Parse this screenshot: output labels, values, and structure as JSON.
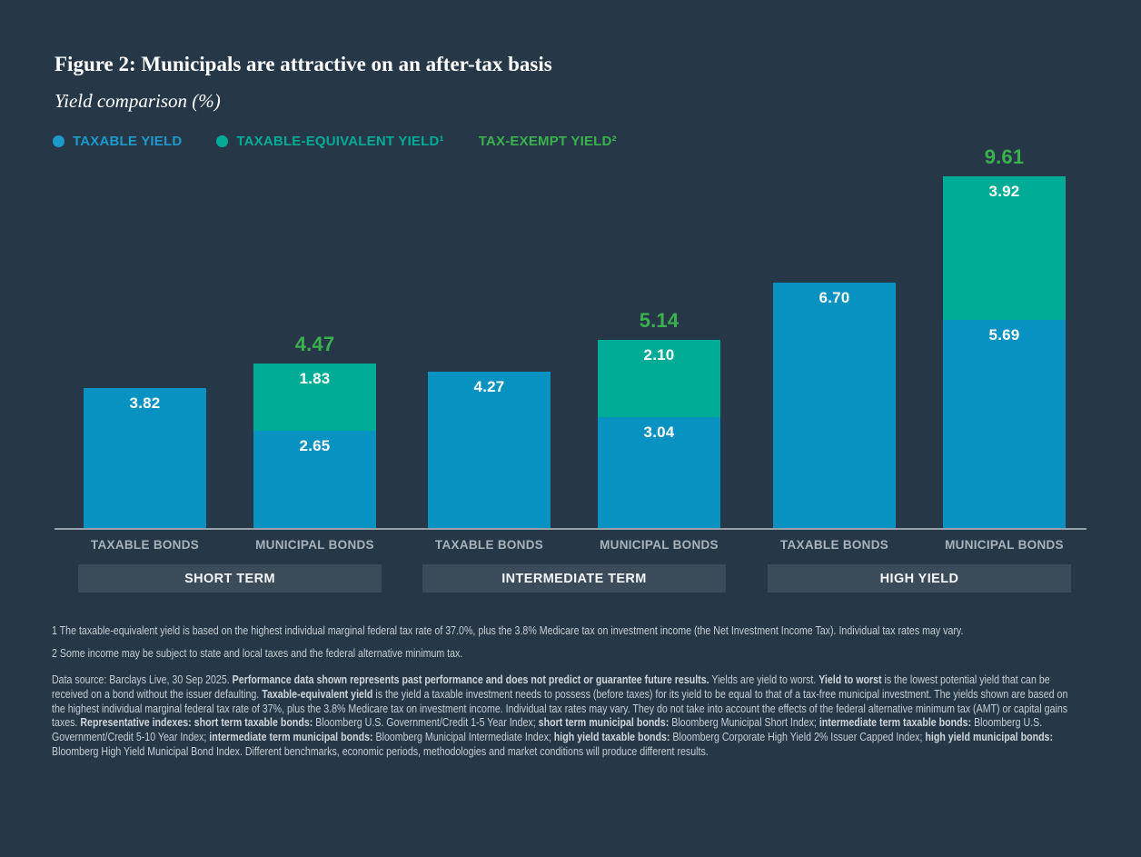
{
  "figure": {
    "title": "Figure 2: Municipals are attractive on an after-tax basis",
    "subtitle": "Yield comparison (%)"
  },
  "legend": [
    {
      "label": "TAXABLE YIELD",
      "color": "#1D99CC",
      "dot": true
    },
    {
      "label": "TAXABLE-EQUIVALENT YIELD¹",
      "color": "#00AC96",
      "dot": true
    },
    {
      "label": "TAX-EXEMPT YIELD²",
      "color": "#3AB04E",
      "dot": false
    }
  ],
  "chart_data": {
    "type": "bar",
    "stacked": true,
    "title": "Yield comparison (%)",
    "ylabel": "Yield (%)",
    "ylim": [
      0,
      10.4
    ],
    "grid": false,
    "legend_position": "top",
    "series_colors": {
      "TAXABLE YIELD": "#0892C2",
      "TAXABLE-EQUIVALENT YIELD": "#00AC96",
      "TAX-EXEMPT YIELD": "#3AB04E"
    },
    "total_label_color": "#3AB04E",
    "groups": [
      {
        "label": "SHORT TERM",
        "bars": [
          {
            "category": "TAXABLE BONDS",
            "segments": [
              {
                "series": "TAXABLE YIELD",
                "value": 3.82,
                "label": "3.82"
              }
            ],
            "total": null,
            "total_label": null
          },
          {
            "category": "MUNICIPAL BONDS",
            "segments": [
              {
                "series": "TAXABLE YIELD",
                "value": 2.65,
                "label": "2.65"
              },
              {
                "series": "TAXABLE-EQUIVALENT YIELD",
                "value": 1.83,
                "label": "1.83"
              }
            ],
            "total": 4.47,
            "total_label": "4.47"
          }
        ]
      },
      {
        "label": "INTERMEDIATE TERM",
        "bars": [
          {
            "category": "TAXABLE BONDS",
            "segments": [
              {
                "series": "TAXABLE YIELD",
                "value": 4.27,
                "label": "4.27"
              }
            ],
            "total": null,
            "total_label": null
          },
          {
            "category": "MUNICIPAL BONDS",
            "segments": [
              {
                "series": "TAXABLE YIELD",
                "value": 3.04,
                "label": "3.04"
              },
              {
                "series": "TAXABLE-EQUIVALENT YIELD",
                "value": 2.1,
                "label": "2.10"
              }
            ],
            "total": 5.14,
            "total_label": "5.14"
          }
        ]
      },
      {
        "label": "HIGH YIELD",
        "bars": [
          {
            "category": "TAXABLE BONDS",
            "segments": [
              {
                "series": "TAXABLE YIELD",
                "value": 6.7,
                "label": "6.70"
              }
            ],
            "total": null,
            "total_label": null
          },
          {
            "category": "MUNICIPAL BONDS",
            "segments": [
              {
                "series": "TAXABLE YIELD",
                "value": 5.69,
                "label": "5.69"
              },
              {
                "series": "TAXABLE-EQUIVALENT YIELD",
                "value": 3.92,
                "label": "3.92"
              }
            ],
            "total": 9.61,
            "total_label": "9.61"
          }
        ]
      }
    ]
  },
  "footnotes": [
    "1 The taxable-equivalent yield is based on the highest individual marginal federal tax rate of 37.0%, plus the 3.8% Medicare tax on investment income (the Net Investment Income Tax). Individual tax rates may vary.",
    "2 Some income may be subject to state and local taxes and the federal alternative minimum tax."
  ],
  "disclosure": {
    "segments": [
      {
        "text": "Data source: Barclays Live, 30 Sep 2025. ",
        "bold": false
      },
      {
        "text": "Performance data shown represents past performance and does not predict or guarantee future results.",
        "bold": true
      },
      {
        "text": " Yields are yield to worst. ",
        "bold": false
      },
      {
        "text": "Yield to worst",
        "bold": true
      },
      {
        "text": " is the lowest potential yield that can be received on a bond without the issuer defaulting. ",
        "bold": false
      },
      {
        "text": "Taxable-equivalent yield",
        "bold": true
      },
      {
        "text": " is the yield a taxable investment needs to possess (before taxes) for its yield to be equal to that of a tax-free municipal investment. The yields shown are based on the highest individual marginal federal tax rate of 37%, plus the 3.8% Medicare tax on investment income. Individual tax rates may vary. They do not take into account the effects of the federal alternative minimum tax (AMT) or capital gains taxes. ",
        "bold": false
      },
      {
        "text": "Representative indexes: short term taxable bonds:",
        "bold": true
      },
      {
        "text": " Bloomberg U.S. Government/Credit 1-5 Year Index; ",
        "bold": false
      },
      {
        "text": "short term municipal bonds:",
        "bold": true
      },
      {
        "text": " Bloomberg Municipal Short Index; ",
        "bold": false
      },
      {
        "text": "intermediate term taxable bonds:",
        "bold": true
      },
      {
        "text": " Bloomberg U.S. Government/Credit 5-10 Year Index; ",
        "bold": false
      },
      {
        "text": "intermediate term municipal bonds:",
        "bold": true
      },
      {
        "text": " Bloomberg Municipal Intermediate Index; ",
        "bold": false
      },
      {
        "text": "high yield taxable bonds:",
        "bold": true
      },
      {
        "text": " Bloomberg Corporate High Yield 2% Issuer Capped Index; ",
        "bold": false
      },
      {
        "text": "high yield municipal bonds:",
        "bold": true
      },
      {
        "text": " Bloomberg High Yield Municipal Bond Index. Different benchmarks, economic periods, methodologies and market conditions will produce different results.",
        "bold": false
      }
    ]
  }
}
